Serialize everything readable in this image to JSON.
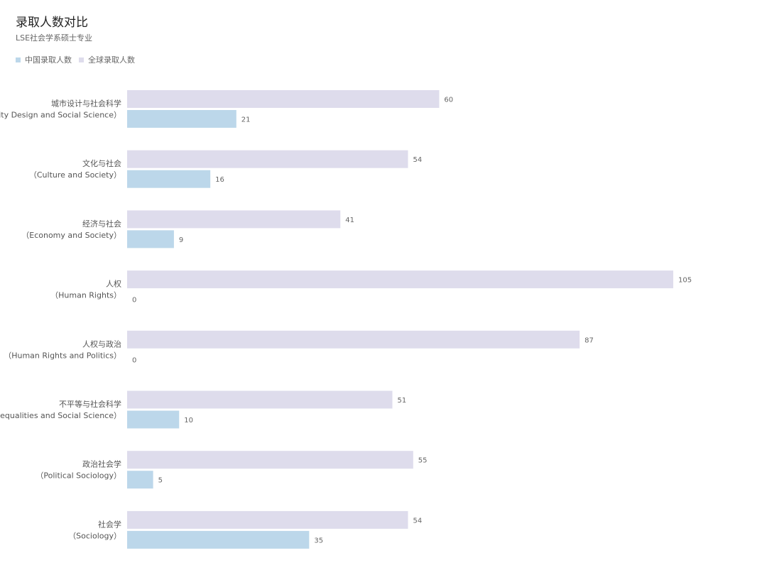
{
  "chart_data": {
    "type": "bar",
    "orientation": "horizontal",
    "title": "录取人数对比",
    "subtitle": "LSE社会学系硕士专业",
    "legend_position": "top-left",
    "grid": false,
    "categories": [
      {
        "cn": "城市设计与社会科学",
        "en": "（City Design and Social Science）"
      },
      {
        "cn": "文化与社会",
        "en": "（Culture and Society）"
      },
      {
        "cn": "经济与社会",
        "en": "（Economy and Society）"
      },
      {
        "cn": "人权",
        "en": "（Human Rights）"
      },
      {
        "cn": "人权与政治",
        "en": "（Human Rights and Politics）"
      },
      {
        "cn": "不平等与社会科学",
        "en": "（Inequalities and Social Science）"
      },
      {
        "cn": "政治社会学",
        "en": "（Political Sociology）"
      },
      {
        "cn": "社会学",
        "en": "（Sociology）"
      }
    ],
    "series": [
      {
        "name": "中国录取人数",
        "color": "#bcd7ea",
        "values": [
          21,
          16,
          9,
          0,
          0,
          10,
          5,
          35
        ]
      },
      {
        "name": "全球录取人数",
        "color": "#dedcec",
        "values": [
          60,
          54,
          41,
          105,
          87,
          51,
          55,
          54
        ]
      }
    ],
    "xlim": [
      0,
      105
    ]
  }
}
